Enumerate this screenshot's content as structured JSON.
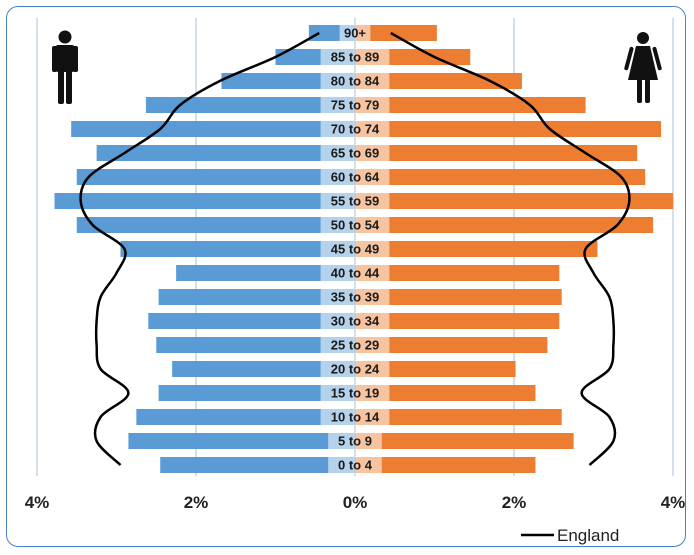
{
  "chart_data": {
    "type": "bar",
    "orientation": "horizontal",
    "categories": [
      "0 to 4",
      "5 to 9",
      "10 to 14",
      "15 to 19",
      "20 to 24",
      "25 to 29",
      "30 to 34",
      "35 to 39",
      "40 to 44",
      "45 to 49",
      "50 to 54",
      "55 to 59",
      "60 to 64",
      "65 to 69",
      "70 to 74",
      "75 to 79",
      "80 to 84",
      "85 to 89",
      "90+"
    ],
    "series": [
      {
        "side": "left",
        "color": "#5b9bd5",
        "values": [
          2.45,
          2.85,
          2.75,
          2.47,
          2.3,
          2.5,
          2.6,
          2.47,
          2.25,
          2.95,
          3.5,
          3.78,
          3.5,
          3.25,
          3.57,
          2.63,
          1.68,
          1.0,
          0.58
        ]
      },
      {
        "side": "right",
        "color": "#ed7d31",
        "values": [
          2.27,
          2.75,
          2.6,
          2.27,
          2.02,
          2.42,
          2.57,
          2.6,
          2.57,
          3.05,
          3.75,
          4.0,
          3.65,
          3.55,
          3.85,
          2.9,
          2.1,
          1.45,
          1.03
        ]
      },
      {
        "name": "England",
        "type": "line",
        "color": "#000000",
        "values": [
          2.95,
          3.25,
          3.2,
          2.85,
          3.2,
          3.25,
          3.25,
          3.2,
          3.0,
          2.9,
          3.3,
          3.45,
          3.35,
          2.9,
          2.45,
          2.2,
          1.7,
          1.0,
          0.45
        ]
      }
    ],
    "xlim": [
      -4,
      4
    ],
    "xticks": [
      "4%",
      "2%",
      "0%",
      "2%",
      "4%"
    ],
    "grid": true,
    "legend_position": "bottom-right",
    "icons": [
      "male-figure-icon",
      "female-figure-icon"
    ]
  }
}
